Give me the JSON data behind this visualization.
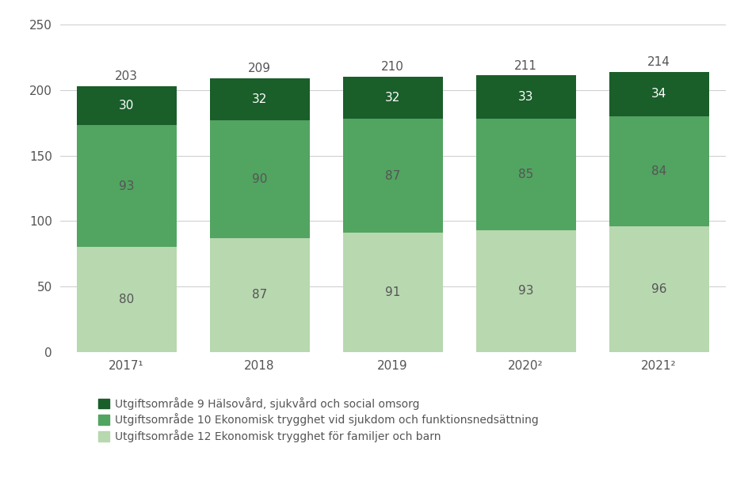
{
  "categories": [
    "2017¹",
    "2018",
    "2019",
    "2020²",
    "2021²"
  ],
  "series": {
    "uo12": [
      80,
      87,
      91,
      93,
      96
    ],
    "uo10": [
      93,
      90,
      87,
      85,
      84
    ],
    "uo9": [
      30,
      32,
      32,
      33,
      34
    ]
  },
  "totals": [
    203,
    209,
    210,
    211,
    214
  ],
  "colors": {
    "uo12": "#b8d8b0",
    "uo10": "#52a461",
    "uo9": "#1a5e2a"
  },
  "legend_labels": [
    "Utgiftsområde 9 Hälsovård, sjukvård och social omsorg",
    "Utgiftsområde 10 Ekonomisk trygghet vid sjukdom och funktionsnedsättning",
    "Utgiftsområde 12 Ekonomisk trygghet för familjer och barn"
  ],
  "ylim": [
    0,
    250
  ],
  "yticks": [
    0,
    50,
    100,
    150,
    200,
    250
  ],
  "bar_width": 0.75,
  "background_color": "#ffffff",
  "grid_color": "#cccccc",
  "text_color": "#555555",
  "text_color_dark": "#555555",
  "text_color_white": "#ffffff",
  "fontsize_ticks": 11,
  "fontsize_labels": 10,
  "fontsize_totals": 11,
  "fontsize_bar_values": 11
}
